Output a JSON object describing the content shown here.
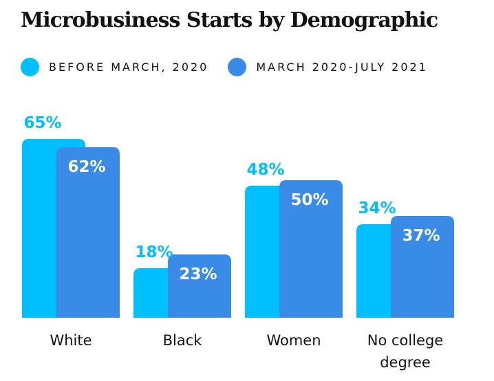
{
  "chart_data": {
    "type": "bar",
    "title": "Microbusiness Starts by Demographic",
    "categories": [
      "White",
      "Black",
      "Women",
      "No college degree"
    ],
    "category_lines": [
      [
        "White"
      ],
      [
        "Black"
      ],
      [
        "Women"
      ],
      [
        "No college",
        "degree"
      ]
    ],
    "series": [
      {
        "name": "BEFORE MARCH, 2020",
        "values": [
          65,
          18,
          48,
          34
        ],
        "labels": [
          "65%",
          "18%",
          "48%",
          "34%"
        ],
        "color": "#00BFFF",
        "label_color": "#00BFFF"
      },
      {
        "name": "MARCH 2020-JULY 2021",
        "values": [
          62,
          23,
          50,
          37
        ],
        "labels": [
          "62%",
          "23%",
          "50%",
          "37%"
        ],
        "color": "#3A8BE6",
        "label_color": "#ffffff"
      }
    ],
    "ylim": [
      0,
      100
    ],
    "xlabel": "",
    "ylabel": "",
    "grid": false,
    "legend_position": "top-left"
  }
}
